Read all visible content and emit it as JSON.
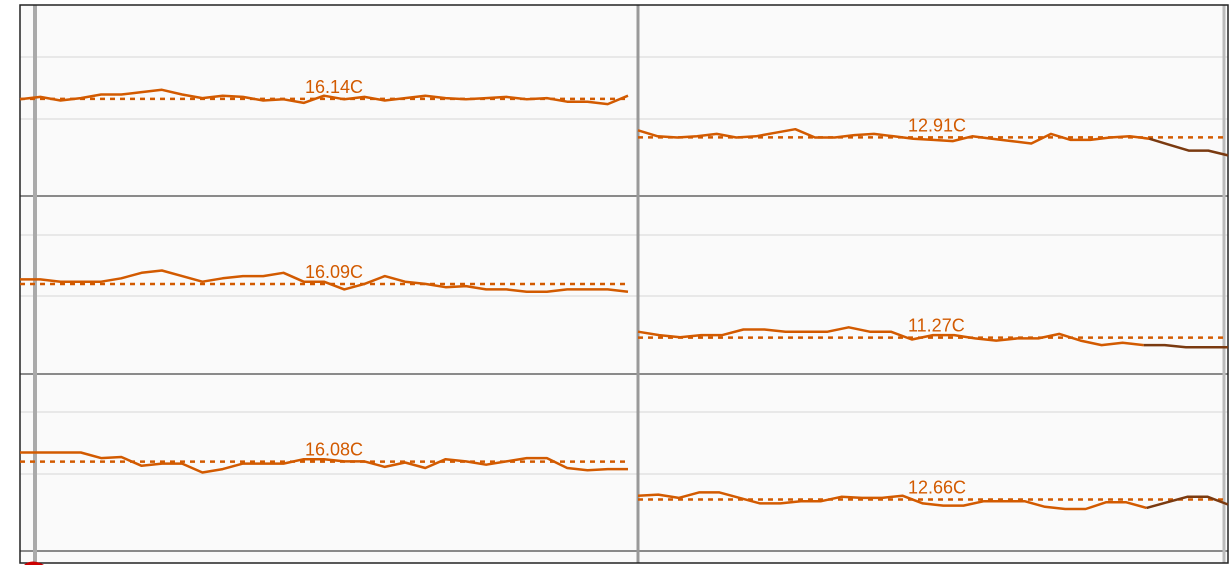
{
  "chart_data": {
    "type": "line",
    "title": "",
    "xlabel": "",
    "ylabel": "",
    "grid": true,
    "colors": {
      "line": "#d25a00",
      "line_dark": "#7a3a10",
      "average": "#d25a00",
      "background": "#fafafa",
      "grid_major": "#8a8a8a",
      "grid_minor": "#e2e2e2",
      "border": "#222222",
      "accent": "#cc0000"
    },
    "panels": [
      {
        "name": "row-1",
        "ylim": [
          8,
          24
        ],
        "segments": [
          {
            "average": 16.14,
            "average_label": "16.14C",
            "values": [
              16.1,
              16.3,
              16.0,
              16.2,
              16.5,
              16.5,
              16.7,
              16.9,
              16.5,
              16.2,
              16.4,
              16.3,
              16.0,
              16.1,
              15.8,
              16.4,
              16.1,
              16.3,
              16.0,
              16.2,
              16.4,
              16.2,
              16.1,
              16.2,
              16.3,
              16.1,
              16.2,
              15.9,
              15.9,
              15.7,
              16.4
            ]
          },
          {
            "average": 12.91,
            "average_label": "12.91C",
            "values": [
              13.5,
              13.0,
              12.9,
              13.0,
              13.2,
              12.9,
              13.0,
              13.3,
              13.6,
              12.9,
              12.9,
              13.1,
              13.2,
              13.0,
              12.8,
              12.7,
              12.6,
              13.0,
              12.8,
              12.6,
              12.4,
              13.2,
              12.7,
              12.7,
              12.9,
              13.0,
              12.8,
              12.3,
              11.8,
              11.8,
              11.4
            ]
          }
        ]
      },
      {
        "name": "row-2",
        "ylim": [
          8,
          24
        ],
        "segments": [
          {
            "average": 16.09,
            "average_label": "16.09C",
            "values": [
              16.5,
              16.5,
              16.3,
              16.3,
              16.3,
              16.6,
              17.1,
              17.3,
              16.8,
              16.3,
              16.6,
              16.8,
              16.8,
              17.1,
              16.3,
              16.3,
              15.6,
              16.1,
              16.8,
              16.3,
              16.1,
              15.8,
              15.9,
              15.6,
              15.6,
              15.4,
              15.4,
              15.6,
              15.6,
              15.6,
              15.4
            ]
          },
          {
            "average": 11.27,
            "average_label": "11.27C",
            "values": [
              11.8,
              11.5,
              11.3,
              11.5,
              11.5,
              12.0,
              12.0,
              11.8,
              11.8,
              11.8,
              12.2,
              11.8,
              11.8,
              11.1,
              11.5,
              11.5,
              11.2,
              11.0,
              11.2,
              11.2,
              11.6,
              11.0,
              10.6,
              10.8,
              10.6,
              10.6,
              10.4,
              10.4,
              10.4
            ]
          }
        ]
      },
      {
        "name": "row-3",
        "ylim": [
          8,
          24
        ],
        "segments": [
          {
            "average": 16.08,
            "average_label": "16.08C",
            "values": [
              16.9,
              16.9,
              16.9,
              16.9,
              16.4,
              16.5,
              15.7,
              15.9,
              15.9,
              15.1,
              15.4,
              15.9,
              15.9,
              15.9,
              16.3,
              16.3,
              16.1,
              16.1,
              15.6,
              16.0,
              15.5,
              16.3,
              16.1,
              15.8,
              16.1,
              16.4,
              16.4,
              15.5,
              15.3,
              15.4,
              15.4
            ]
          },
          {
            "average": 12.66,
            "average_label": "12.66C",
            "values": [
              13.0,
              13.1,
              12.8,
              13.3,
              13.3,
              12.8,
              12.3,
              12.3,
              12.5,
              12.5,
              12.9,
              12.8,
              12.8,
              13.0,
              12.3,
              12.1,
              12.1,
              12.5,
              12.5,
              12.5,
              12.0,
              11.8,
              11.8,
              12.4,
              12.4,
              11.9,
              12.4,
              12.9,
              12.9,
              12.2
            ]
          }
        ]
      }
    ]
  }
}
